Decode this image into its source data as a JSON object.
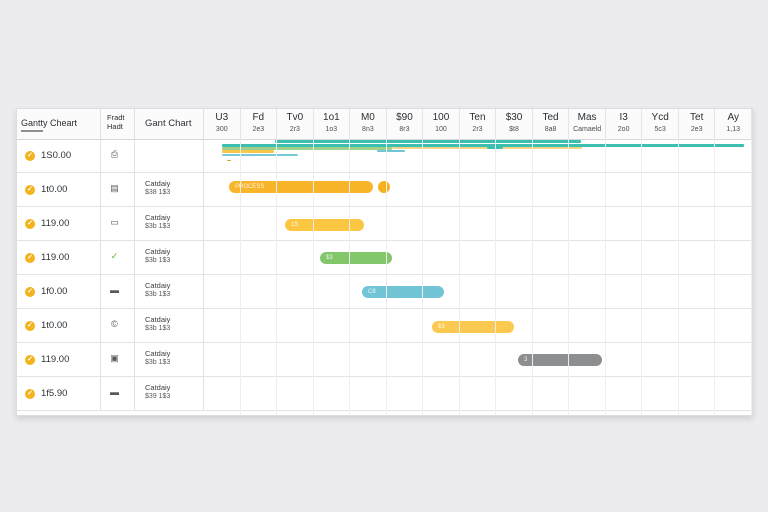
{
  "header": {
    "col1_title": "Gantty Chеart",
    "col2_title_line1": "Fradt",
    "col2_title_line2": "Hadt",
    "col3_title": "Gant Chart",
    "months": [
      {
        "top": "U3",
        "bottom": "300"
      },
      {
        "top": "Fd",
        "bottom": "2e3"
      },
      {
        "top": "Tv0",
        "bottom": "2r3"
      },
      {
        "top": "1o1",
        "bottom": "1o3"
      },
      {
        "top": "M0",
        "bottom": "8n3"
      },
      {
        "top": "$90",
        "bottom": "8r3"
      },
      {
        "top": "100",
        "bottom": "100"
      },
      {
        "top": "Ten",
        "bottom": "2r3"
      },
      {
        "top": "$30",
        "bottom": "$t8"
      },
      {
        "top": "Ted",
        "bottom": "8a8"
      },
      {
        "top": "Mas",
        "bottom": "Camaeld"
      },
      {
        "top": "I3",
        "bottom": "2o0"
      },
      {
        "top": "Ycd",
        "bottom": "5c3"
      },
      {
        "top": "Tet",
        "bottom": "2e3"
      },
      {
        "top": "Ay",
        "bottom": "1,13"
      }
    ]
  },
  "rows": [
    {
      "value": "1S0.00",
      "icon": "printer-icon",
      "icon_glyph": "⎙",
      "label1": "",
      "label2": "",
      "bar_label": "",
      "bar_color": ""
    },
    {
      "value": "1t0.00",
      "icon": "calendar-icon",
      "icon_glyph": "▤",
      "label1": "Catdaiy",
      "label2": "$38 1$3",
      "bar_label": "PROCESS",
      "bar_color": "#f9b52a"
    },
    {
      "value": "119.00",
      "icon": "document-icon",
      "icon_glyph": "▭",
      "label1": "Catdaiy",
      "label2": "$3b 1$3",
      "bar_label": "1S",
      "bar_color": "#fbc743"
    },
    {
      "value": "119.00",
      "icon": "check-icon",
      "icon_glyph": "✓",
      "label1": "Catdaiy",
      "label2": "$3b 1$3",
      "bar_label": "$3",
      "bar_color": "#82c76a"
    },
    {
      "value": "1f0.00",
      "icon": "card-icon",
      "icon_glyph": "▬",
      "label1": "Catdaiy",
      "label2": "$3b 1$3",
      "bar_label": "C8",
      "bar_color": "#72c5d5"
    },
    {
      "value": "1t0.00",
      "icon": "copyright-icon",
      "icon_glyph": "©",
      "label1": "Catdaiy",
      "label2": "$3b 1$3",
      "bar_label": "$3",
      "bar_color": "#fbc94f"
    },
    {
      "value": "119.00",
      "icon": "grid-icon",
      "icon_glyph": "▣",
      "label1": "Catdaiy",
      "label2": "$3b 1$3",
      "bar_label": "3",
      "bar_color": "#8d8e90"
    },
    {
      "value": "1f5.90",
      "icon": "card-icon",
      "icon_glyph": "▬",
      "label1": "Catdaiy",
      "label2": "$39 1$3",
      "bar_label": "",
      "bar_color": ""
    }
  ],
  "colors": {
    "accent": "#f4b21c",
    "teal": "#3cbfae",
    "green": "#82c76a",
    "blue": "#72c5d5",
    "yellow": "#f9b52a",
    "gray": "#8d8e90"
  }
}
